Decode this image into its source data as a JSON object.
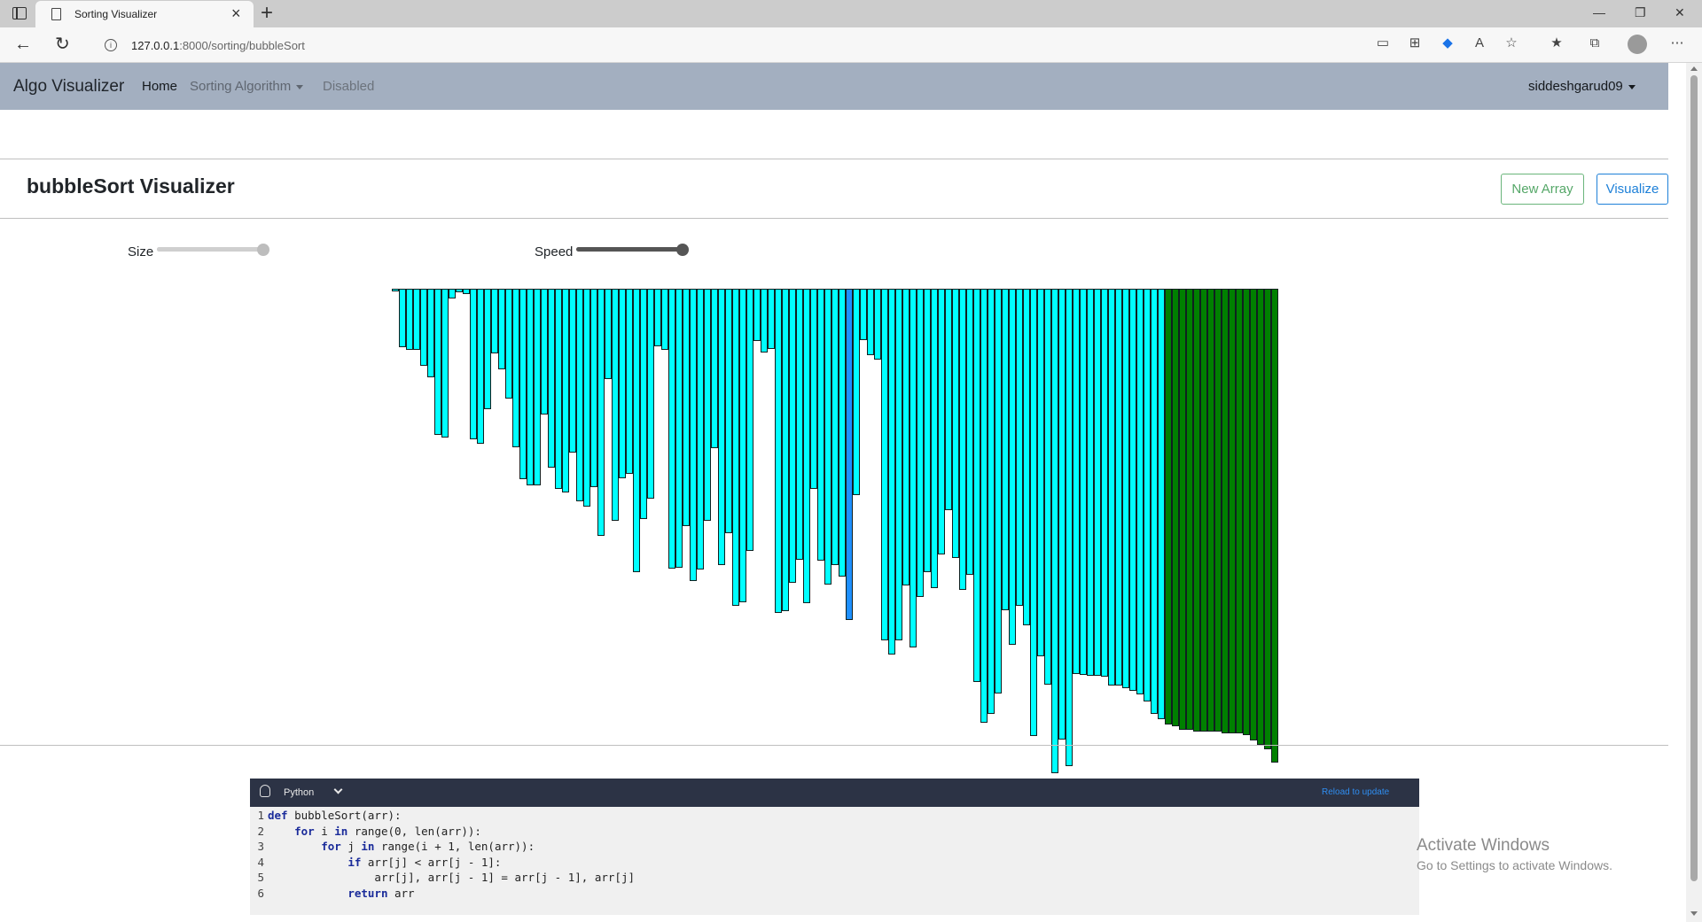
{
  "browser": {
    "tab_title": "Sorting Visualizer",
    "url_host": "127.0.0.1",
    "url_rest": ":8000/sorting/bubbleSort"
  },
  "navbar": {
    "brand": "Algo Visualizer",
    "home": "Home",
    "sorting": "Sorting Algorithm",
    "disabled": "Disabled",
    "user": "siddeshgarud09"
  },
  "header": {
    "title": "bubbleSort Visualizer",
    "new_array": "New Array",
    "visualize": "Visualize"
  },
  "controls": {
    "size_label": "Size",
    "speed_label": "Speed",
    "size_value": 0.95,
    "speed_value": 0.95
  },
  "chart_data": {
    "type": "bar",
    "orientation": "downward",
    "colors": {
      "unsorted": "#00ffff",
      "active": "#1e90ff",
      "sorted": "#008000"
    },
    "values": [
      3,
      66,
      69,
      69,
      87,
      100,
      165,
      168,
      11,
      4,
      6,
      170,
      175,
      136,
      73,
      91,
      124,
      179,
      215,
      222,
      222,
      142,
      202,
      226,
      230,
      185,
      240,
      246,
      224,
      279,
      102,
      262,
      214,
      209,
      320,
      260,
      237,
      65,
      69,
      316,
      315,
      268,
      330,
      317,
      262,
      180,
      312,
      276,
      358,
      354,
      296,
      59,
      72,
      68,
      366,
      364,
      332,
      306,
      355,
      226,
      307,
      334,
      312,
      325,
      374,
      233,
      58,
      75,
      80,
      397,
      413,
      397,
      335,
      405,
      348,
      320,
      338,
      300,
      250,
      304,
      340,
      323,
      444,
      490,
      480,
      457,
      363,
      402,
      358,
      380,
      505,
      415,
      447,
      547,
      509,
      539,
      435,
      436,
      437,
      437,
      438,
      448,
      448,
      451,
      454,
      458,
      466,
      480,
      486,
      492,
      494,
      498,
      498,
      500,
      500,
      500,
      500,
      502,
      502,
      502,
      504,
      510,
      515,
      520,
      535
    ],
    "active_index": 64,
    "sorted_from_index": 109
  },
  "code": {
    "language": "Python",
    "reload": "Reload to update",
    "lines": [
      "def bubbleSort(arr):",
      "    for i in range(0, len(arr)):",
      "        for j in range(i + 1, len(arr)):",
      "            if arr[j] < arr[j - 1]:",
      "                arr[j], arr[j - 1] = arr[j - 1], arr[j]",
      "            return arr"
    ]
  },
  "watermark": {
    "title": "Activate Windows",
    "subtitle": "Go to Settings to activate Windows."
  }
}
